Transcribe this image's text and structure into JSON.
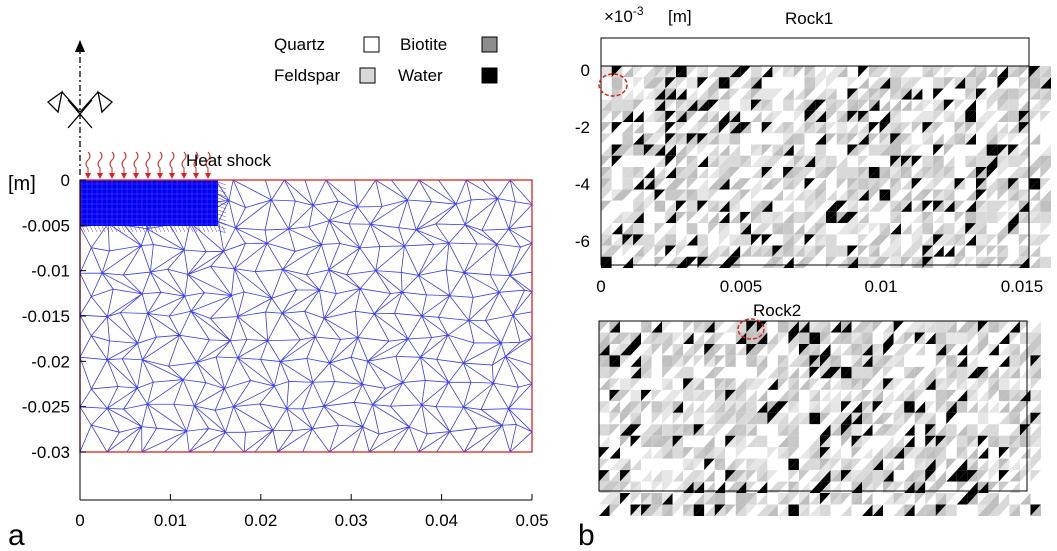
{
  "panel_a": {
    "label": "a",
    "unit_label": "[m]",
    "heat_label": "Heat shock",
    "legend": [
      {
        "label": "Quartz",
        "color": "#ffffff"
      },
      {
        "label": "Biotite",
        "color": "#8c8c8c"
      },
      {
        "label": "Feldspar",
        "color": "#d9d9d9"
      },
      {
        "label": "Water",
        "color": "#000000"
      }
    ],
    "x_ticks": [
      "0",
      "0.01",
      "0.02",
      "0.03",
      "0.04",
      "0.05"
    ],
    "y_ticks": [
      "0",
      "-0.005",
      "-0.01",
      "-0.015",
      "-0.02",
      "-0.025",
      "-0.03"
    ],
    "xlim": [
      0,
      0.05
    ],
    "ylim": [
      -0.03,
      0
    ],
    "mesh_color": "#3b3bf5",
    "boundary_color": "#e02020",
    "refined_color": "#0000ee"
  },
  "panel_b": {
    "label": "b",
    "exponent_label": "×10",
    "exponent_power": "-3",
    "unit_label": "[m]",
    "rock1_title": "Rock1",
    "rock2_title": "Rock2",
    "y_ticks": [
      "0",
      "-2",
      "-4",
      "-6"
    ],
    "x_ticks": [
      "0",
      "0.005",
      "0.01",
      "0.015"
    ],
    "marker_color": "#e02020"
  }
}
